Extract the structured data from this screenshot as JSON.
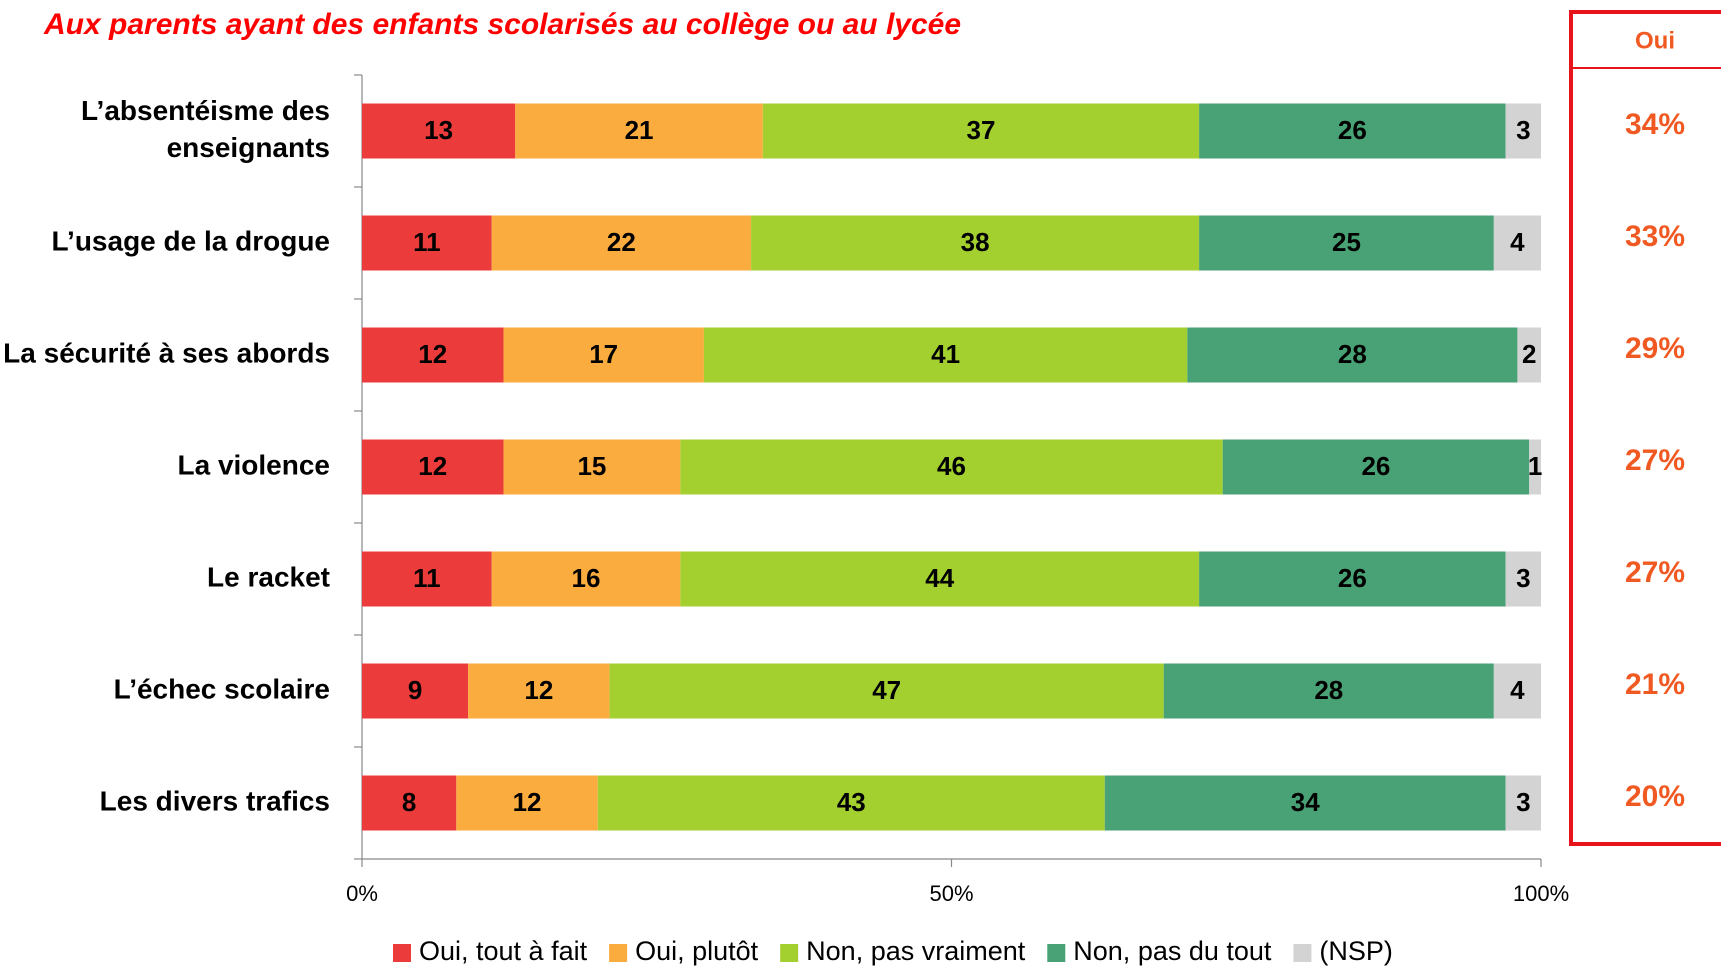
{
  "chart_data": {
    "type": "stacked_barh",
    "title": "Aux parents ayant des enfants scolarisés au collège ou au lycée",
    "categories": [
      "L’absentéisme des enseignants",
      "L’usage de la drogue",
      "La sécurité à ses abords",
      "La violence",
      "Le racket",
      "L’échec scolaire",
      "Les divers trafics"
    ],
    "series": [
      {
        "name": "Oui, tout à fait",
        "color": "#ec3b3b",
        "values": [
          13,
          11,
          12,
          12,
          11,
          9,
          8
        ]
      },
      {
        "name": "Oui, plutôt",
        "color": "#fbac3f",
        "values": [
          21,
          22,
          17,
          15,
          16,
          12,
          12
        ]
      },
      {
        "name": "Non, pas vraiment",
        "color": "#a3cf2f",
        "values": [
          37,
          38,
          41,
          46,
          44,
          47,
          43
        ]
      },
      {
        "name": "Non, pas du tout",
        "color": "#48a275",
        "values": [
          26,
          25,
          28,
          26,
          26,
          28,
          34
        ]
      },
      {
        "name": "(NSP)",
        "color": "#d3d3d3",
        "values": [
          3,
          4,
          2,
          1,
          3,
          4,
          3
        ]
      }
    ],
    "xlim": [
      0,
      100
    ],
    "xticks": [
      {
        "value": 0,
        "label": "0%"
      },
      {
        "value": 50,
        "label": "50%"
      },
      {
        "value": 100,
        "label": "100%"
      }
    ],
    "legend": "bottom",
    "oui": {
      "title": "Oui",
      "color": "#f05a22",
      "values": [
        34,
        33,
        29,
        27,
        27,
        21,
        20
      ],
      "value_labels": [
        "34%",
        "33%",
        "29%",
        "27%",
        "27%",
        "21%",
        "20%"
      ]
    }
  }
}
